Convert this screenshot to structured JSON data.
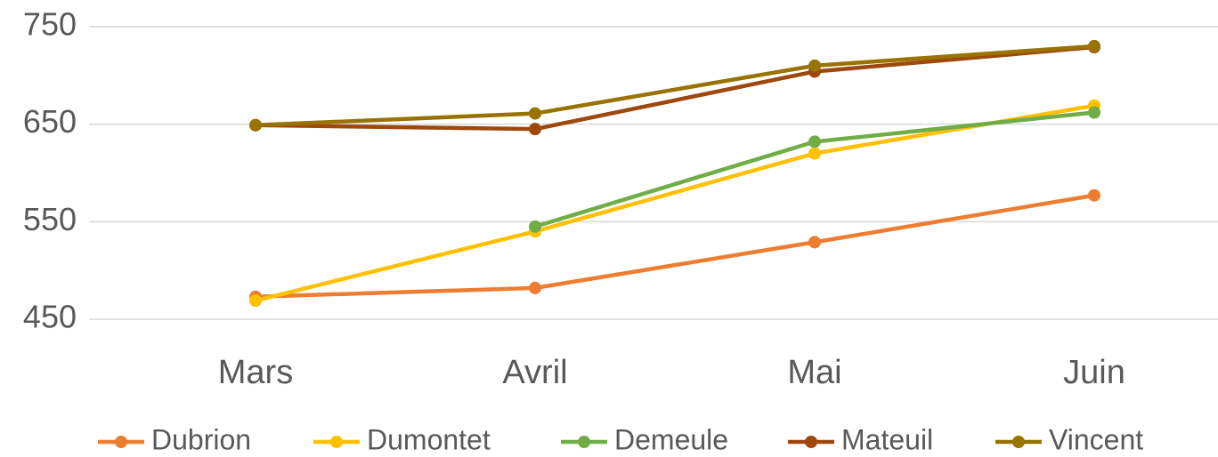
{
  "chart_data": {
    "type": "line",
    "categories": [
      "Mars",
      "Avril",
      "Mai",
      "Juin"
    ],
    "series": [
      {
        "name": "Dubrion",
        "color": "#ed7d31",
        "values": [
          473,
          482,
          529,
          577
        ]
      },
      {
        "name": "Dumontet",
        "color": "#ffc000",
        "values": [
          469,
          540,
          620,
          669
        ]
      },
      {
        "name": "Demeule",
        "color": "#70ad47",
        "values": [
          null,
          545,
          632,
          662
        ]
      },
      {
        "name": "Mateuil",
        "color": "#9e480e",
        "values": [
          649,
          645,
          704,
          729
        ]
      },
      {
        "name": "Vincent",
        "color": "#997300",
        "values": [
          649,
          661,
          710,
          730
        ]
      }
    ],
    "ylim": [
      450,
      750
    ],
    "yticks": [
      450,
      550,
      650,
      750
    ],
    "grid": true,
    "legend": "bottom"
  }
}
